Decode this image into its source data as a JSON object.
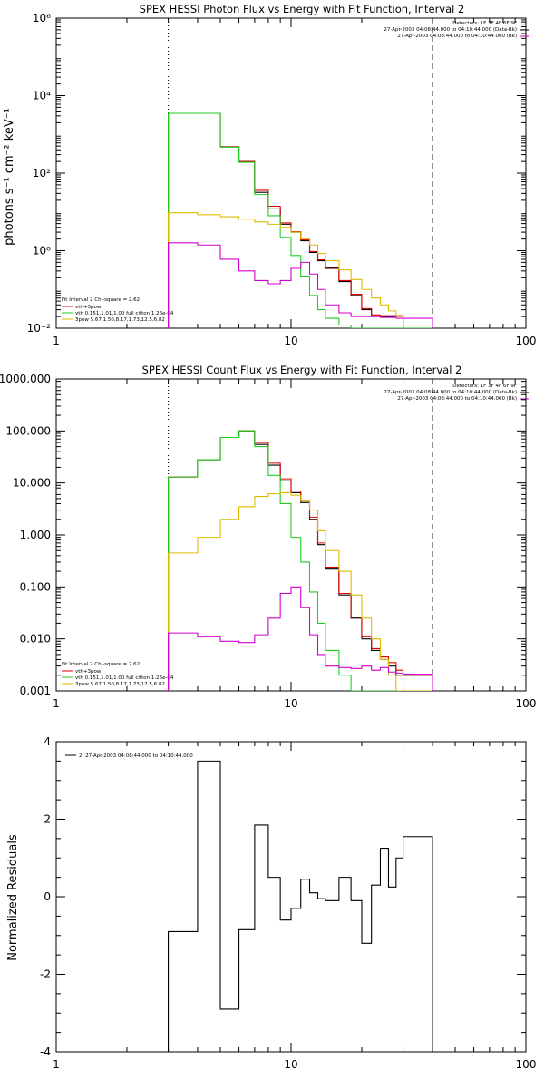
{
  "colors": {
    "black": "#000000",
    "red": "#e00000",
    "green": "#22cc22",
    "yellow": "#ddbb00",
    "magenta": "#d000d0"
  },
  "chart_data": [
    {
      "type": "line",
      "title": "SPEX HESSI Photon Flux vs Energy with Fit Function, Interval 2",
      "ylabel": "photons s⁻¹ cm⁻² keV⁻¹",
      "xlabel": "",
      "xscale": "log",
      "yscale": "log",
      "xlim": [
        1,
        100
      ],
      "ylim": [
        0.01,
        1000000
      ],
      "xticks": [
        1,
        10,
        100
      ],
      "xtick_labels": [
        "1",
        "10",
        "100"
      ],
      "yticks": [
        0.01,
        1,
        100,
        10000,
        1000000
      ],
      "ytick_labels": [
        "10⁻²",
        "10⁰",
        "10²",
        "10⁴",
        "10⁶"
      ],
      "vlines": [
        {
          "x": 3,
          "style": "dotted"
        },
        {
          "x": 40,
          "style": "dashed"
        }
      ],
      "header_lines": [
        "Detectors: 1F 3F 4F 6F 9F",
        "27-Apr-2003 04:08:44.000 to 04:10:44.000 (Data-Bk)",
        "27-Apr-2003 04:08:44.000 to 04:10:44.000 (Bk)"
      ],
      "legend_lines": [
        "Fit Interval 2   Chi-square = 2.62",
        "vth+3pow",
        "vth 0.151,1.01,1.00  full citton 1.26e-04",
        "3pow 5.67,1.50,8.17,1.73,12.5,6.82"
      ],
      "edges": [
        3.0,
        4.0,
        5.0,
        6.0,
        7.0,
        8.0,
        9.0,
        10.0,
        11.0,
        12.0,
        13.0,
        14.0,
        16.0,
        18.0,
        20.0,
        22.0,
        24.0,
        26.0,
        28.0,
        30.0,
        40.0
      ],
      "series": [
        {
          "color": "black",
          "values": [
            3500,
            3500,
            480,
            200,
            32,
            12,
            4.8,
            3.0,
            1.8,
            0.9,
            0.55,
            0.35,
            0.16,
            0.07,
            0.03,
            0.02,
            0.02,
            0.02,
            0.02,
            0.01
          ]
        },
        {
          "color": "red",
          "values": [
            3500,
            3500,
            480,
            200,
            36,
            14,
            5.2,
            3.1,
            1.9,
            0.95,
            0.58,
            0.37,
            0.17,
            0.075,
            0.032,
            0.022,
            0.021,
            0.021,
            0.021,
            0.01
          ]
        },
        {
          "color": "green",
          "values": [
            3500,
            3500,
            470,
            190,
            28,
            8,
            2.2,
            0.75,
            0.22,
            0.07,
            0.03,
            0.018,
            0.012,
            0.01,
            0.01,
            0.01,
            0.01,
            0.01,
            0.01,
            0.01
          ]
        },
        {
          "color": "yellow",
          "values": [
            9.5,
            8.5,
            7.5,
            6.5,
            5.5,
            4.8,
            4.0,
            3.0,
            2.0,
            1.4,
            0.85,
            0.55,
            0.32,
            0.18,
            0.1,
            0.06,
            0.04,
            0.028,
            0.02,
            0.012
          ]
        },
        {
          "color": "magenta",
          "values": [
            1.6,
            1.4,
            0.6,
            0.3,
            0.17,
            0.14,
            0.17,
            0.35,
            0.5,
            0.25,
            0.1,
            0.04,
            0.025,
            0.02,
            0.02,
            0.02,
            0.019,
            0.019,
            0.018,
            0.018
          ]
        }
      ]
    },
    {
      "type": "line",
      "title": "SPEX HESSI Count Flux vs Energy with Fit Function, Interval 2",
      "ylabel": "",
      "xlabel": "",
      "xscale": "log",
      "yscale": "log",
      "xlim": [
        1,
        100
      ],
      "ylim": [
        0.001,
        1000
      ],
      "xticks": [
        1,
        10,
        100
      ],
      "xtick_labels": [
        "1",
        "10",
        "100"
      ],
      "yticks": [
        0.001,
        0.01,
        0.1,
        1,
        10,
        100,
        1000
      ],
      "ytick_labels": [
        "0.001",
        "0.010",
        "0.100",
        "1.000",
        "10.000",
        "100.000",
        "1000.000"
      ],
      "vlines": [
        {
          "x": 3,
          "style": "dotted"
        },
        {
          "x": 40,
          "style": "dashed"
        }
      ],
      "header_lines": [
        "Detectors: 1F 3F 4F 6F 9F",
        "27-Apr-2003 04:08:44.000 to 04:10:44.000 (Data-Bk)",
        "27-Apr-2003 04:08:44.000 to 04:10:44.000 (Bk)"
      ],
      "legend_lines": [
        "Fit Interval 2   Chi-square = 2.62",
        "vth+3pow",
        "vth 0.151,1.01,1.00  full citton 1.26e-04",
        "3pow 5.67,1.50,8.17,1.73,12.5,6.82"
      ],
      "edges": [
        3.0,
        4.0,
        5.0,
        6.0,
        7.0,
        8.0,
        9.0,
        10.0,
        11.0,
        12.0,
        13.0,
        14.0,
        16.0,
        18.0,
        20.0,
        22.0,
        24.0,
        26.0,
        28.0,
        30.0,
        40.0
      ],
      "series": [
        {
          "color": "black",
          "values": [
            13,
            28,
            75,
            100,
            55,
            22,
            11,
            6.5,
            4.2,
            2.0,
            0.65,
            0.22,
            0.07,
            0.025,
            0.01,
            0.006,
            0.004,
            0.003,
            0.002,
            0.002
          ]
        },
        {
          "color": "red",
          "values": [
            13,
            28,
            75,
            100,
            60,
            24,
            12,
            7,
            4.5,
            2.2,
            0.7,
            0.24,
            0.075,
            0.026,
            0.011,
            0.0065,
            0.0045,
            0.0035,
            0.0025,
            0.002
          ]
        },
        {
          "color": "green",
          "values": [
            13,
            28,
            75,
            100,
            50,
            14,
            4,
            0.9,
            0.3,
            0.08,
            0.02,
            0.006,
            0.002,
            0.001,
            0.001,
            0.001,
            0.001,
            0.001,
            0.001,
            0.001
          ]
        },
        {
          "color": "yellow",
          "values": [
            0.45,
            0.9,
            2.0,
            3.5,
            5.5,
            6.2,
            6.5,
            5.8,
            4.5,
            3.0,
            1.2,
            0.5,
            0.2,
            0.07,
            0.025,
            0.01,
            0.004,
            0.002,
            0.001,
            0.001
          ]
        },
        {
          "color": "magenta",
          "values": [
            0.013,
            0.011,
            0.009,
            0.0085,
            0.012,
            0.025,
            0.075,
            0.1,
            0.04,
            0.012,
            0.005,
            0.003,
            0.0028,
            0.0027,
            0.003,
            0.0025,
            0.0028,
            0.0023,
            0.0022,
            0.0021
          ]
        }
      ]
    },
    {
      "type": "line",
      "title": "",
      "ylabel": "Normalized Residuals",
      "xlabel": "",
      "xscale": "log",
      "yscale": "linear",
      "xlim": [
        1,
        100
      ],
      "ylim": [
        -4,
        4
      ],
      "xticks": [
        1,
        10,
        100
      ],
      "xtick_labels": [
        "1",
        "10",
        "100"
      ],
      "yticks": [
        -4,
        -2,
        0,
        2,
        4
      ],
      "ytick_labels": [
        "-4",
        "-2",
        "0",
        "2",
        "4"
      ],
      "legend_lines": [
        "2: 27-Apr-2003 04:08:44.000 to 04:10:44.000"
      ],
      "edges": [
        3.0,
        4.0,
        5.0,
        6.0,
        7.0,
        8.0,
        9.0,
        10.0,
        11.0,
        12.0,
        13.0,
        14.0,
        16.0,
        18.0,
        20.0,
        22.0,
        24.0,
        26.0,
        28.0,
        30.0,
        40.0
      ],
      "series": [
        {
          "color": "black",
          "values": [
            -0.9,
            3.5,
            -2.9,
            -0.85,
            1.85,
            0.5,
            -0.6,
            -0.3,
            0.45,
            0.1,
            -0.05,
            -0.1,
            0.5,
            -0.1,
            -1.2,
            0.3,
            1.25,
            0.25,
            1.0,
            1.55
          ]
        }
      ]
    }
  ]
}
